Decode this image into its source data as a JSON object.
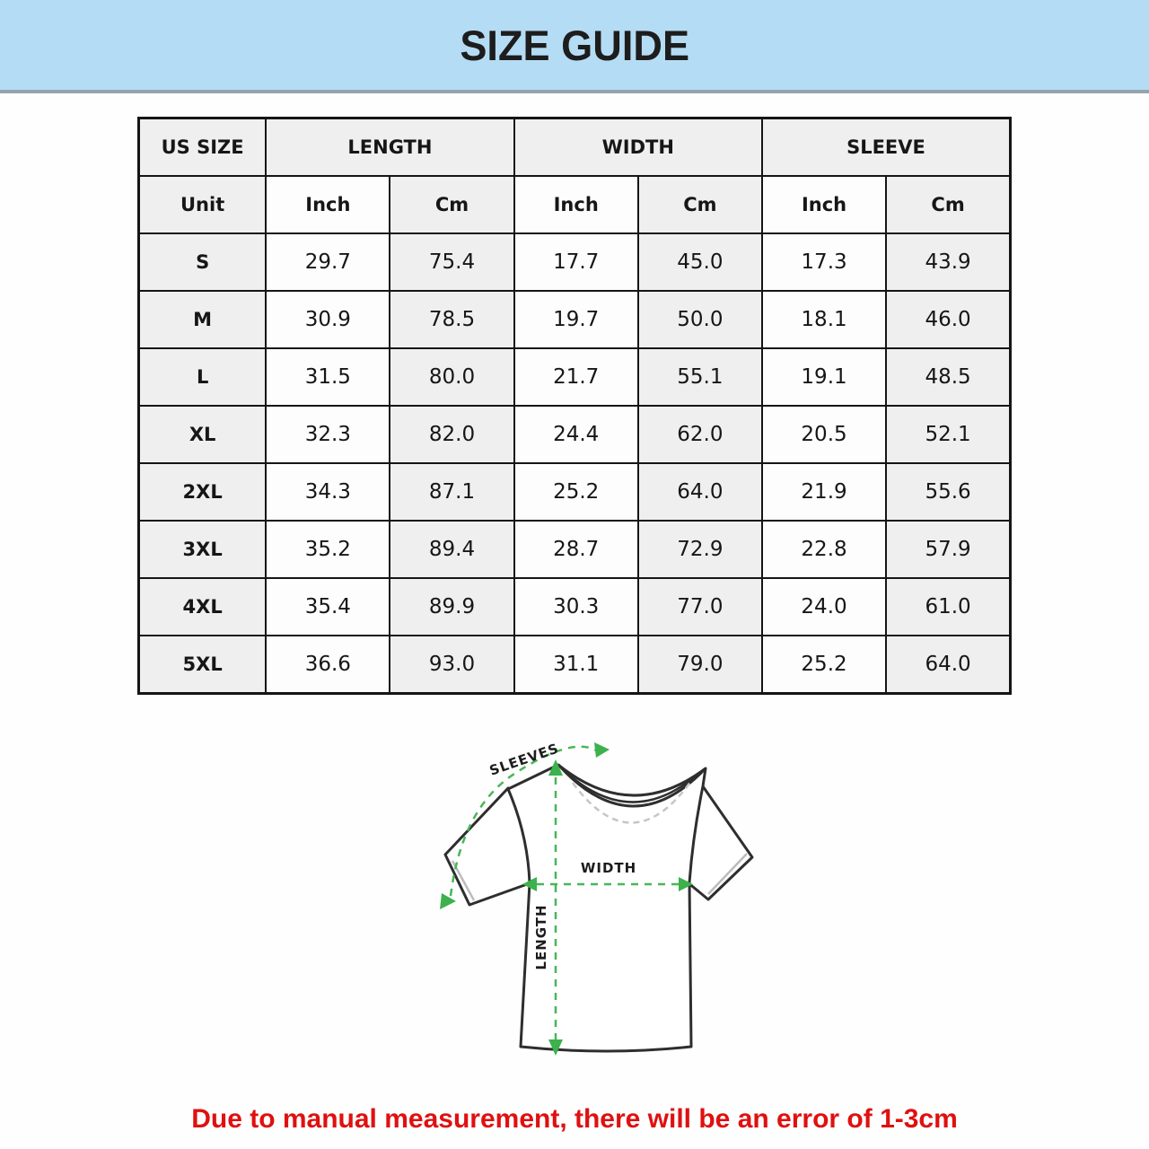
{
  "banner": {
    "bg_color": "#b5dcf5"
  },
  "chart_data": {
    "type": "table",
    "title": "SIZE GUIDE",
    "group_headers": [
      "US SIZE",
      "LENGTH",
      "WIDTH",
      "SLEEVE"
    ],
    "unit_headers": [
      "Unit",
      "Inch",
      "Cm",
      "Inch",
      "Cm",
      "Inch",
      "Cm"
    ],
    "rows": [
      [
        "S",
        "29.7",
        "75.4",
        "17.7",
        "45.0",
        "17.3",
        "43.9"
      ],
      [
        "M",
        "30.9",
        "78.5",
        "19.7",
        "50.0",
        "18.1",
        "46.0"
      ],
      [
        "L",
        "31.5",
        "80.0",
        "21.7",
        "55.1",
        "19.1",
        "48.5"
      ],
      [
        "XL",
        "32.3",
        "82.0",
        "24.4",
        "62.0",
        "20.5",
        "52.1"
      ],
      [
        "2XL",
        "34.3",
        "87.1",
        "25.2",
        "64.0",
        "21.9",
        "55.6"
      ],
      [
        "3XL",
        "35.2",
        "89.4",
        "28.7",
        "72.9",
        "22.8",
        "57.9"
      ],
      [
        "4XL",
        "35.4",
        "89.9",
        "30.3",
        "77.0",
        "24.0",
        "61.0"
      ],
      [
        "5XL",
        "36.6",
        "93.0",
        "31.1",
        "79.0",
        "25.2",
        "64.0"
      ]
    ]
  },
  "diagram": {
    "labels": {
      "sleeves": "SLEEVES",
      "width": "WIDTH",
      "length": "LENGTH"
    },
    "line_color": "#47b757",
    "arrow_color": "#3cb14c",
    "shirt_outline_color": "#2e2e2e"
  },
  "note": {
    "text": "Due to manual measurement, there will be an error of 1-3cm",
    "color": "#e01010"
  }
}
